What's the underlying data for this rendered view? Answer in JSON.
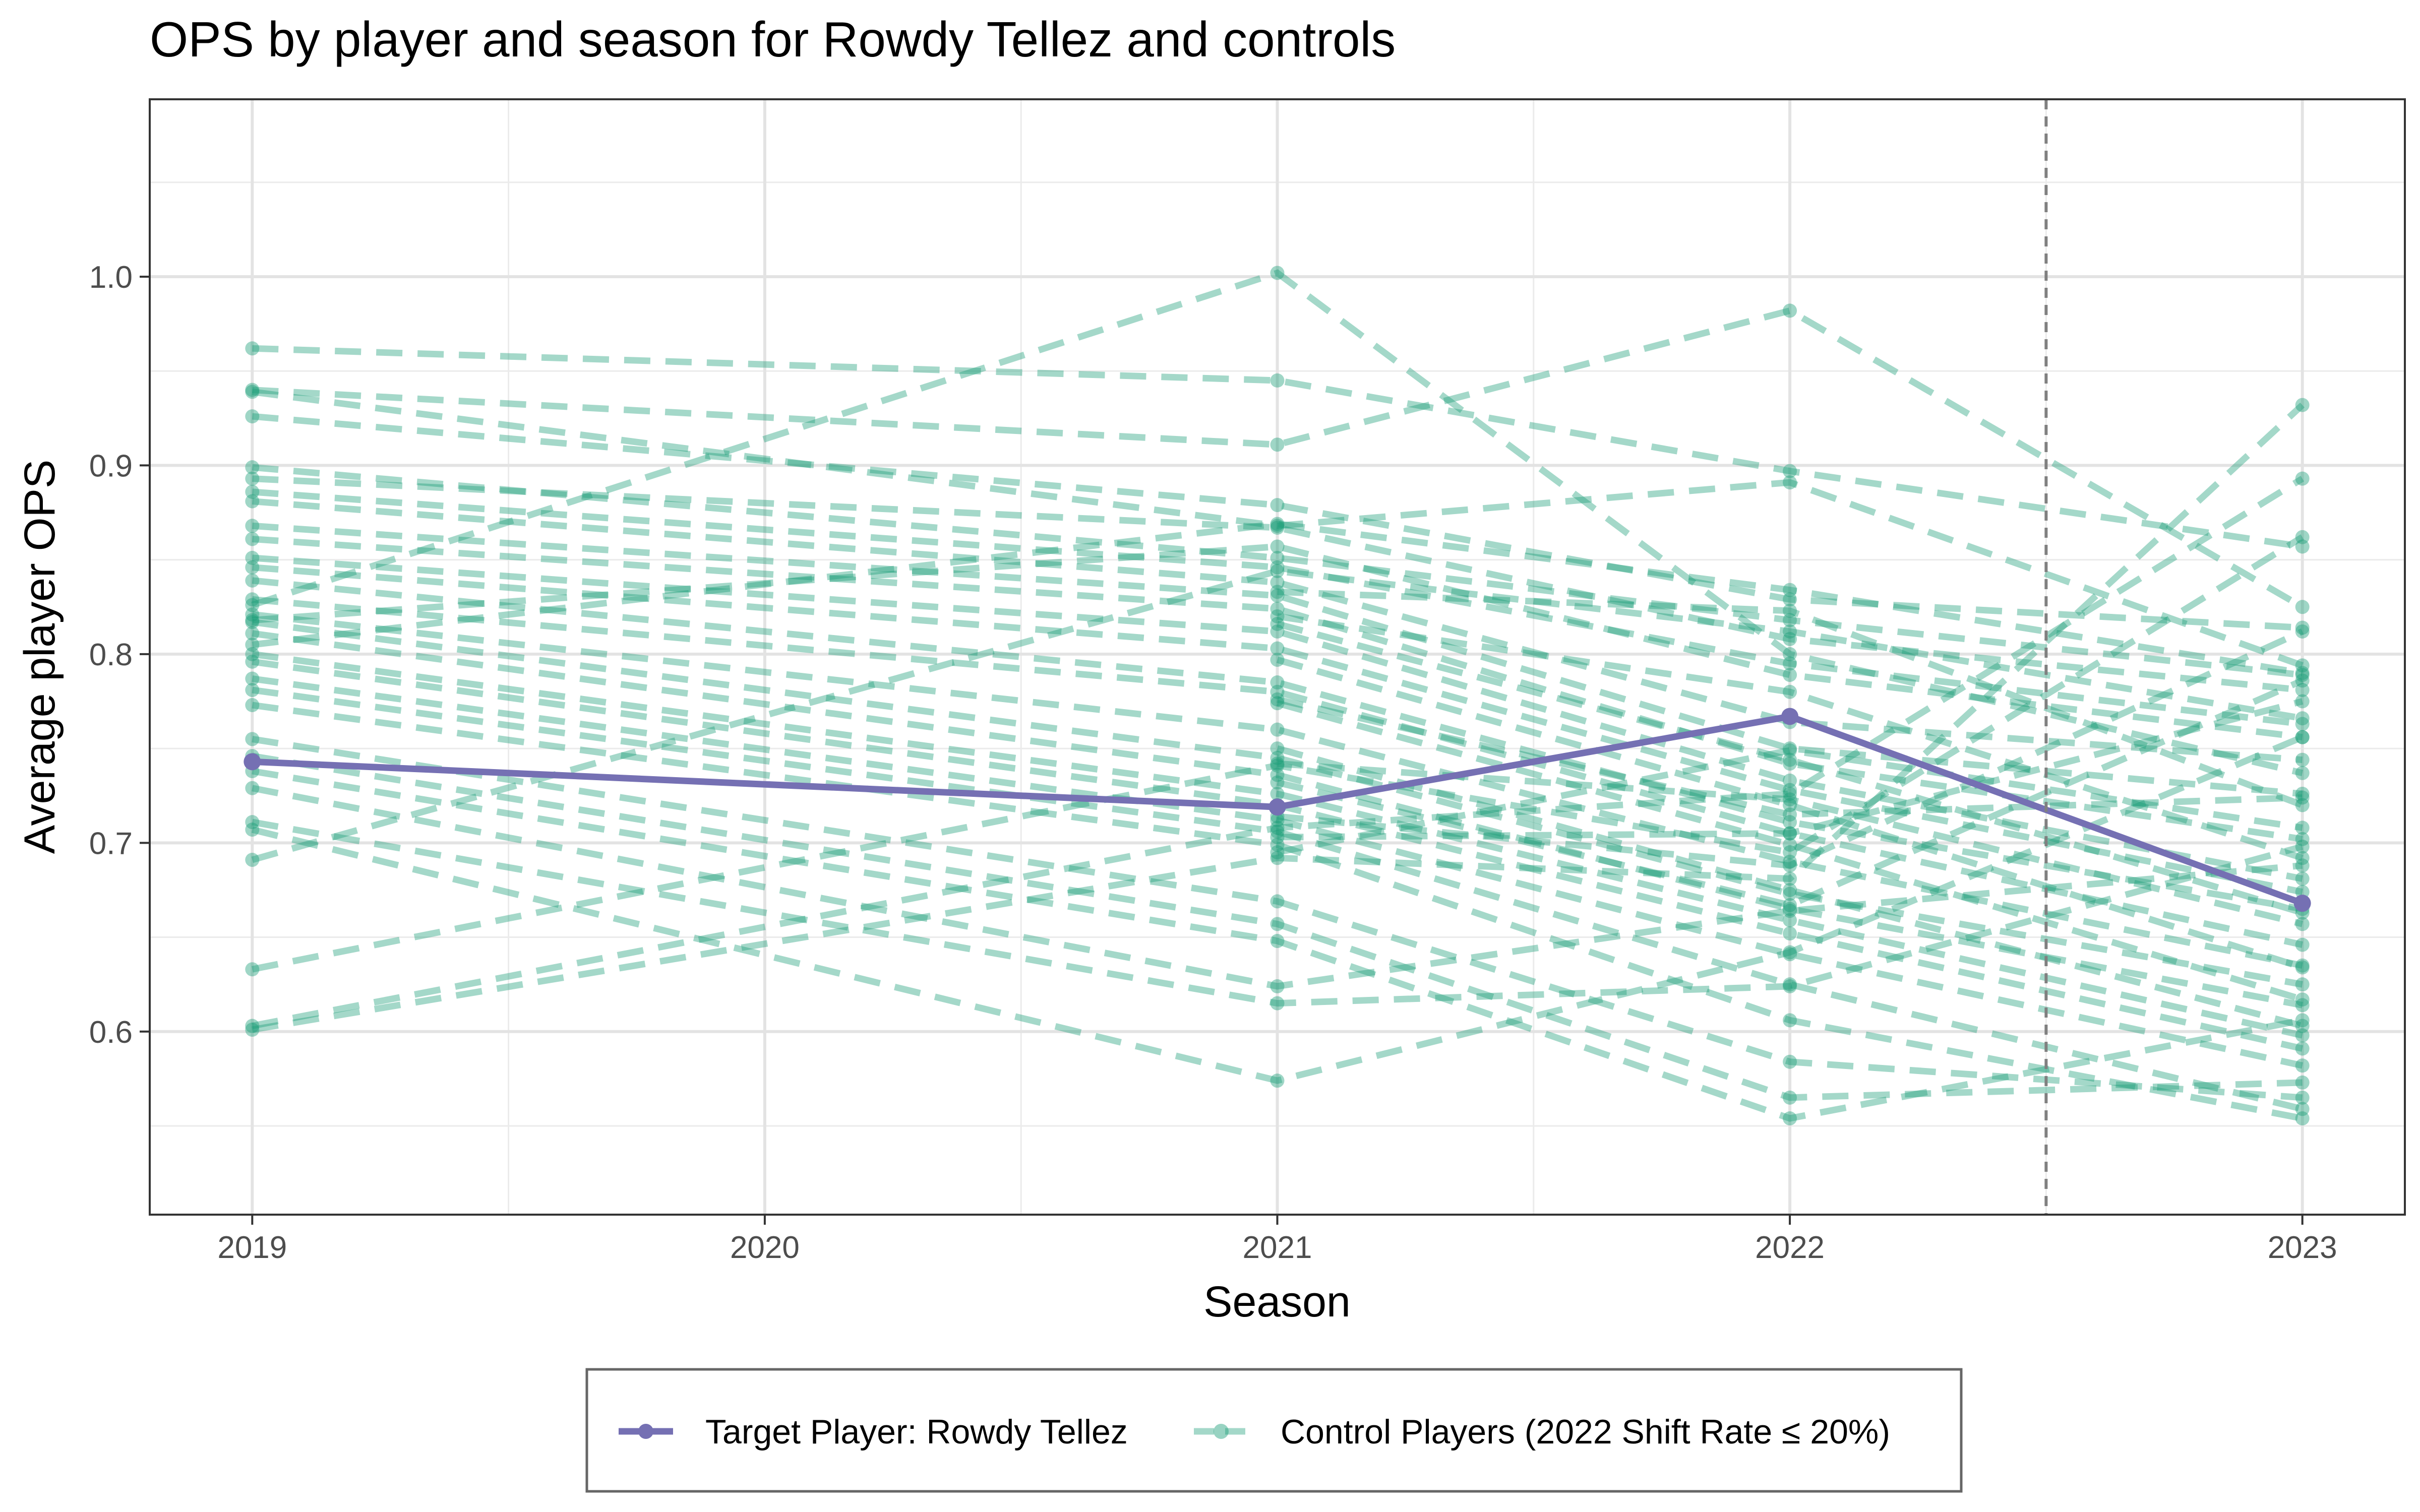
{
  "chart_data": {
    "type": "line",
    "title": "OPS by player and season for Rowdy Tellez and controls",
    "xlabel": "Season",
    "ylabel": "Average player OPS",
    "x_ticks": [
      "2019",
      "2020",
      "2021",
      "2022",
      "2023"
    ],
    "y_ticks": [
      "0.6",
      "0.7",
      "0.8",
      "0.9",
      "1.0"
    ],
    "xlim": [
      2018.8,
      2023.2
    ],
    "ylim": [
      0.503,
      1.094
    ],
    "grid": true,
    "treatment_line_x": 2022.5,
    "legend_position": "bottom",
    "colors": {
      "target": "#7570b3",
      "control": "#1b9e77",
      "vline": "#808080"
    },
    "series": [
      {
        "name": "Target Player: Rowdy Tellez",
        "role": "target",
        "x": [
          2019,
          2021,
          2022,
          2023
        ],
        "values": [
          0.743,
          0.719,
          0.767,
          0.668
        ]
      },
      {
        "name": "Control Players (2022 Shift Rate ≤ 20%)",
        "role": "control",
        "players": [
          {
            "x": [
              2019,
              2021,
              2022,
              2023
            ],
            "values": [
              0.962,
              0.945,
              0.897,
              0.857
            ]
          },
          {
            "x": [
              2019,
              2021,
              2022,
              2023
            ],
            "values": [
              0.94,
              0.911,
              0.982,
              0.825
            ]
          },
          {
            "x": [
              2019,
              2021,
              2022,
              2023
            ],
            "values": [
              0.939,
              0.868,
              0.891,
              0.794
            ]
          },
          {
            "x": [
              2019,
              2021,
              2022,
              2023
            ],
            "values": [
              0.926,
              0.879,
              0.829,
              0.814
            ]
          },
          {
            "x": [
              2019,
              2021,
              2022,
              2023
            ],
            "values": [
              0.899,
              0.851,
              0.818,
              0.789
            ]
          },
          {
            "x": [
              2019,
              2021,
              2022,
              2023
            ],
            "values": [
              0.893,
              0.867,
              0.808,
              0.781
            ]
          },
          {
            "x": [
              2019,
              2021,
              2022,
              2023
            ],
            "values": [
              0.886,
              0.846,
              0.795,
              0.763
            ]
          },
          {
            "x": [
              2019,
              2021,
              2022,
              2023
            ],
            "values": [
              0.881,
              0.838,
              0.764,
              0.744
            ]
          },
          {
            "x": [
              2019,
              2021,
              2022,
              2023
            ],
            "values": [
              0.868,
              0.831,
              0.75,
              0.726
            ]
          },
          {
            "x": [
              2019,
              2021,
              2022,
              2023
            ],
            "values": [
              0.861,
              0.824,
              0.742,
              0.702
            ]
          },
          {
            "x": [
              2019,
              2021,
              2022,
              2023
            ],
            "values": [
              0.851,
              0.812,
              0.733,
              0.681
            ]
          },
          {
            "x": [
              2019,
              2021,
              2022,
              2023
            ],
            "values": [
              0.846,
              0.803,
              0.728,
              0.674
            ]
          },
          {
            "x": [
              2019,
              2021,
              2022,
              2023
            ],
            "values": [
              0.839,
              0.785,
              0.711,
              0.665
            ]
          },
          {
            "x": [
              2019,
              2021,
              2022,
              2023
            ],
            "values": [
              0.829,
              0.78,
              0.705,
              0.646
            ]
          },
          {
            "x": [
              2019,
              2021,
              2022,
              2023
            ],
            "values": [
              0.821,
              0.76,
              0.69,
              0.635
            ]
          },
          {
            "x": [
              2019,
              2021,
              2022,
              2023
            ],
            "values": [
              0.817,
              0.745,
              0.673,
              0.625
            ]
          },
          {
            "x": [
              2019,
              2021,
              2022,
              2023
            ],
            "values": [
              0.811,
              0.736,
              0.665,
              0.614
            ]
          },
          {
            "x": [
              2019,
              2021,
              2022,
              2023
            ],
            "values": [
              0.8,
              0.726,
              0.659,
              0.598
            ]
          },
          {
            "x": [
              2019,
              2021,
              2022,
              2023
            ],
            "values": [
              0.796,
              0.72,
              0.652,
              0.591
            ]
          },
          {
            "x": [
              2019,
              2021,
              2022,
              2023
            ],
            "values": [
              0.787,
              0.712,
              0.641,
              0.582
            ]
          },
          {
            "x": [
              2019,
              2021,
              2022,
              2023
            ],
            "values": [
              0.781,
              0.706,
              0.625,
              0.559
            ]
          },
          {
            "x": [
              2019,
              2021,
              2022,
              2023
            ],
            "values": [
              0.773,
              0.699,
              0.606,
              0.554
            ]
          },
          {
            "x": [
              2019,
              2021,
              2022,
              2023
            ],
            "values": [
              0.755,
              0.669,
              0.584,
              0.565
            ]
          },
          {
            "x": [
              2019,
              2021,
              2022,
              2023
            ],
            "values": [
              0.746,
              0.657,
              0.565,
              0.573
            ]
          },
          {
            "x": [
              2019,
              2021,
              2022,
              2023
            ],
            "values": [
              0.738,
              0.648,
              0.554,
              0.606
            ]
          },
          {
            "x": [
              2019,
              2021,
              2022,
              2023
            ],
            "values": [
              0.729,
              0.624,
              0.664,
              0.688
            ]
          },
          {
            "x": [
              2019,
              2021,
              2022,
              2023
            ],
            "values": [
              0.711,
              0.615,
              0.624,
              0.698
            ]
          },
          {
            "x": [
              2019,
              2021,
              2022,
              2023
            ],
            "values": [
              0.707,
              0.574,
              0.642,
              0.756
            ]
          },
          {
            "x": [
              2019,
              2021,
              2022,
              2023
            ],
            "values": [
              0.691,
              0.844,
              0.812,
              0.766
            ]
          },
          {
            "x": [
              2019,
              2021,
              2022,
              2023
            ],
            "values": [
              0.633,
              0.741,
              0.695,
              0.862
            ]
          },
          {
            "x": [
              2019,
              2021,
              2022,
              2023
            ],
            "values": [
              0.603,
              0.708,
              0.726,
              0.893
            ]
          },
          {
            "x": [
              2019,
              2021,
              2022,
              2023
            ],
            "values": [
              0.601,
              0.692,
              0.681,
              0.932
            ]
          },
          {
            "x": [
              2019,
              2021,
              2022,
              2023
            ],
            "values": [
              0.805,
              0.869,
              0.834,
              0.79
            ]
          },
          {
            "x": [
              2019,
              2021,
              2022,
              2023
            ],
            "values": [
              0.818,
              0.857,
              0.789,
              0.756
            ]
          },
          {
            "x": [
              2019,
              2021,
              2022,
              2023
            ],
            "values": [
              0.826,
              1.002,
              0.8,
              0.737
            ]
          },
          {
            "x": [
              2021,
              2022,
              2023
            ],
            "values": [
              0.833,
              0.823,
              0.72
            ]
          },
          {
            "x": [
              2021,
              2022,
              2023
            ],
            "values": [
              0.82,
              0.78,
              0.692
            ]
          },
          {
            "x": [
              2021,
              2022,
              2023
            ],
            "values": [
              0.816,
              0.744,
              0.663
            ]
          },
          {
            "x": [
              2021,
              2022,
              2023
            ],
            "values": [
              0.797,
              0.72,
              0.634
            ]
          },
          {
            "x": [
              2021,
              2022,
              2023
            ],
            "values": [
              0.774,
              0.699,
              0.617
            ]
          },
          {
            "x": [
              2021,
              2022,
              2023
            ],
            "values": [
              0.75,
              0.675,
              0.603
            ]
          },
          {
            "x": [
              2021,
              2022,
              2023
            ],
            "values": [
              0.732,
              0.667,
              0.786
            ]
          },
          {
            "x": [
              2021,
              2022,
              2023
            ],
            "values": [
              0.714,
              0.688,
              0.812
            ]
          },
          {
            "x": [
              2021,
              2022,
              2023
            ],
            "values": [
              0.703,
              0.705,
              0.775
            ]
          },
          {
            "x": [
              2021,
              2022,
              2023
            ],
            "values": [
              0.695,
              0.749,
              0.708
            ]
          },
          {
            "x": [
              2021,
              2022,
              2023
            ],
            "values": [
              0.776,
              0.715,
              0.724
            ]
          },
          {
            "x": [
              2021,
              2022,
              2023
            ],
            "values": [
              0.742,
              0.723,
              0.657
            ]
          }
        ]
      }
    ]
  }
}
